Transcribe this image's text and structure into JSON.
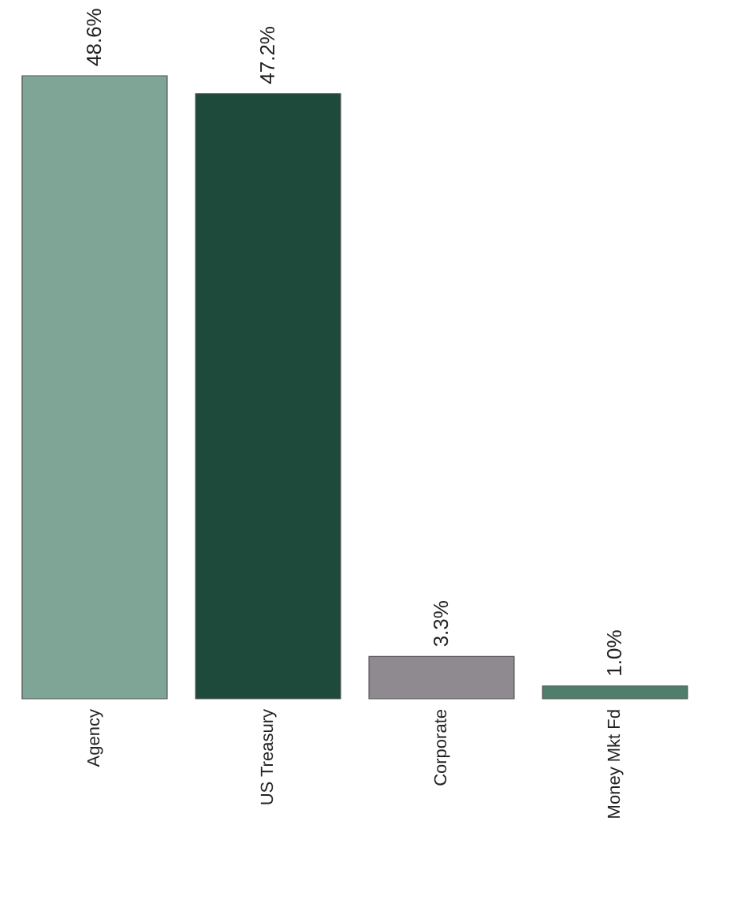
{
  "chart_data": {
    "type": "bar",
    "categories": [
      "Agency",
      "US Treasury",
      "Corporate",
      "Money Mkt Fd"
    ],
    "values": [
      48.6,
      47.2,
      3.3,
      1.0
    ],
    "colors": [
      "#7fa597",
      "#1e4a3c",
      "#8e8a90",
      "#4f7e6c"
    ],
    "value_labels": [
      "48.6%",
      "47.2%",
      "3.3%",
      "1.0%"
    ],
    "grid": false,
    "legend": false
  }
}
